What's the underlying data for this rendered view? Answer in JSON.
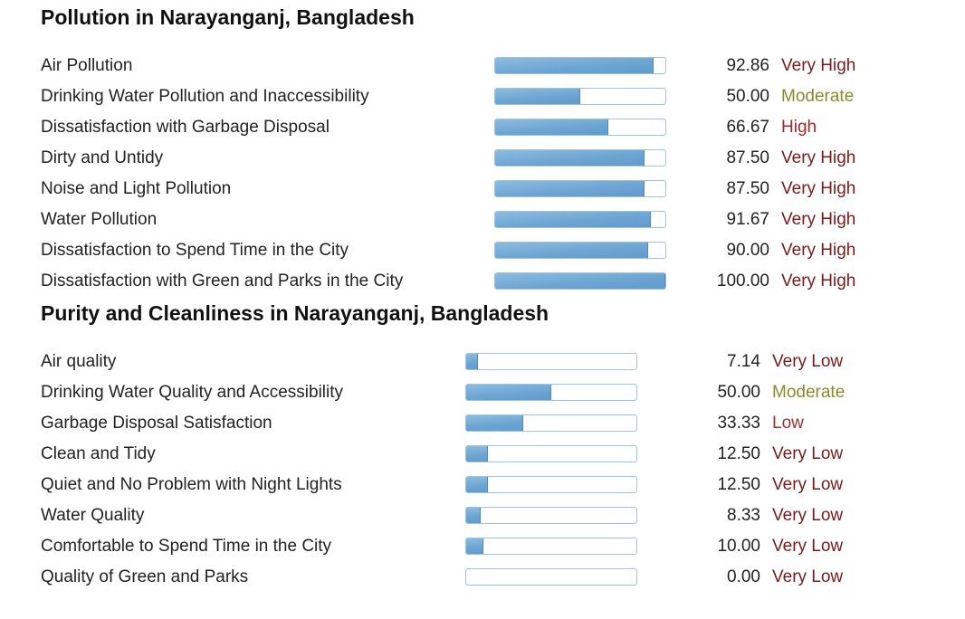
{
  "colors": {
    "very_high": "#7a1a1a",
    "high": "#9c2a2a",
    "moderate": "#8a8a2a",
    "low": "#9c3333",
    "very_low": "#7a1a1a"
  },
  "pollution": {
    "title": "Pollution in Narayanganj, Bangladesh",
    "rows": [
      {
        "label": "Air Pollution",
        "value": "92.86",
        "level": "Very High",
        "level_key": "very_high",
        "fill_percent": 92.86
      },
      {
        "label": "Drinking Water Pollution and Inaccessibility",
        "value": "50.00",
        "level": "Moderate",
        "level_key": "moderate",
        "fill_percent": 50.0
      },
      {
        "label": "Dissatisfaction with Garbage Disposal",
        "value": "66.67",
        "level": "High",
        "level_key": "high",
        "fill_percent": 66.67
      },
      {
        "label": "Dirty and Untidy",
        "value": "87.50",
        "level": "Very High",
        "level_key": "very_high",
        "fill_percent": 87.5
      },
      {
        "label": "Noise and Light Pollution",
        "value": "87.50",
        "level": "Very High",
        "level_key": "very_high",
        "fill_percent": 87.5
      },
      {
        "label": "Water Pollution",
        "value": "91.67",
        "level": "Very High",
        "level_key": "very_high",
        "fill_percent": 91.67
      },
      {
        "label": "Dissatisfaction to Spend Time in the City",
        "value": "90.00",
        "level": "Very High",
        "level_key": "very_high",
        "fill_percent": 90.0
      },
      {
        "label": "Dissatisfaction with Green and Parks in the City",
        "value": "100.00",
        "level": "Very High",
        "level_key": "very_high",
        "fill_percent": 100.0
      }
    ]
  },
  "purity": {
    "title": "Purity and Cleanliness in Narayanganj, Bangladesh",
    "rows": [
      {
        "label": "Air quality",
        "value": "7.14",
        "level": "Very Low",
        "level_key": "very_low",
        "fill_percent": 7.14
      },
      {
        "label": "Drinking Water Quality and Accessibility",
        "value": "50.00",
        "level": "Moderate",
        "level_key": "moderate",
        "fill_percent": 50.0
      },
      {
        "label": "Garbage Disposal Satisfaction",
        "value": "33.33",
        "level": "Low",
        "level_key": "low",
        "fill_percent": 33.33
      },
      {
        "label": "Clean and Tidy",
        "value": "12.50",
        "level": "Very Low",
        "level_key": "very_low",
        "fill_percent": 12.5
      },
      {
        "label": "Quiet and No Problem with Night Lights",
        "value": "12.50",
        "level": "Very Low",
        "level_key": "very_low",
        "fill_percent": 12.5
      },
      {
        "label": "Water Quality",
        "value": "8.33",
        "level": "Very Low",
        "level_key": "very_low",
        "fill_percent": 8.33
      },
      {
        "label": "Comfortable to Spend Time in the City",
        "value": "10.00",
        "level": "Very Low",
        "level_key": "very_low",
        "fill_percent": 10.0
      },
      {
        "label": "Quality of Green and Parks",
        "value": "0.00",
        "level": "Very Low",
        "level_key": "very_low",
        "fill_percent": 0.0
      }
    ]
  }
}
